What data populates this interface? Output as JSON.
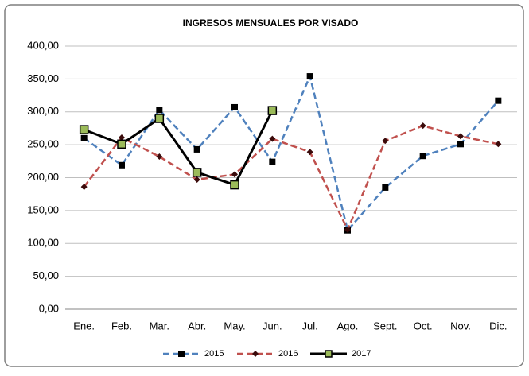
{
  "chart_data": {
    "type": "line",
    "title": "INGRESOS MENSUALES POR VISADO",
    "categories": [
      "Ene.",
      "Feb.",
      "Mar.",
      "Abr.",
      "May.",
      "Jun.",
      "Jul.",
      "Ago.",
      "Sept.",
      "Oct.",
      "Nov.",
      "Dic."
    ],
    "series": [
      {
        "name": "2015",
        "color": "#4f81bd",
        "dash": true,
        "marker": "square",
        "marker_fill": "#000000",
        "values": [
          260,
          219,
          303,
          243,
          307,
          224,
          354,
          120,
          185,
          233,
          251,
          317
        ]
      },
      {
        "name": "2016",
        "color": "#c0504d",
        "dash": true,
        "marker": "diamond",
        "marker_fill": "#3a0a0a",
        "values": [
          186,
          261,
          232,
          197,
          205,
          259,
          239,
          121,
          256,
          279,
          263,
          251
        ]
      },
      {
        "name": "2017",
        "color": "#000000",
        "dash": false,
        "marker": "square",
        "marker_fill": "#9bbb59",
        "values": [
          273,
          251,
          290,
          208,
          189,
          302,
          null,
          null,
          null,
          null,
          null,
          null
        ]
      }
    ],
    "ylim": [
      0,
      400
    ],
    "yticks": [
      {
        "value": 0,
        "label": "0,00"
      },
      {
        "value": 50,
        "label": "50,00"
      },
      {
        "value": 100,
        "label": "100,00"
      },
      {
        "value": 150,
        "label": "150,00"
      },
      {
        "value": 200,
        "label": "200,00"
      },
      {
        "value": 250,
        "label": "250,00"
      },
      {
        "value": 300,
        "label": "300,00"
      },
      {
        "value": 350,
        "label": "350,00"
      },
      {
        "value": 400,
        "label": "400,00"
      }
    ],
    "grid": true,
    "legend": "bottom"
  }
}
